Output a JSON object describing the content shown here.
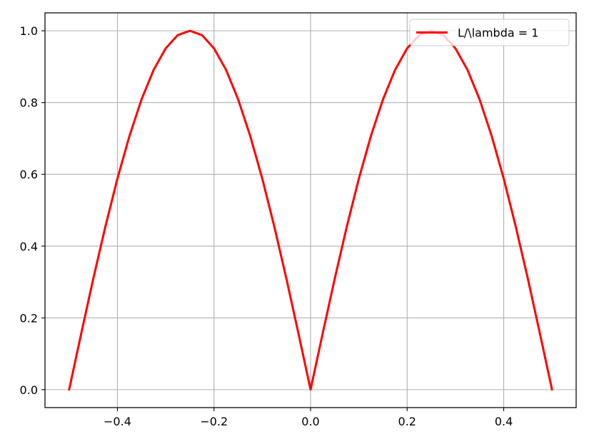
{
  "chart_data": {
    "type": "line",
    "title": "",
    "xlabel": "",
    "ylabel": "",
    "xlim": [
      -0.55,
      0.55
    ],
    "ylim": [
      -0.05,
      1.05
    ],
    "grid": true,
    "legend_position": "top-right",
    "x_ticks": [
      -0.4,
      -0.2,
      0.0,
      0.2,
      0.4
    ],
    "x_tick_labels": [
      "−0.4",
      "−0.2",
      "0.0",
      "0.2",
      "0.4"
    ],
    "y_ticks": [
      0.0,
      0.2,
      0.4,
      0.6,
      0.8,
      1.0
    ],
    "y_tick_labels": [
      "0.0",
      "0.2",
      "0.4",
      "0.6",
      "0.8",
      "1.0"
    ],
    "series": [
      {
        "name": "L/\\lambda = 1",
        "color": "#ff0000",
        "x": [
          -0.5,
          -0.475,
          -0.45,
          -0.425,
          -0.4,
          -0.375,
          -0.35,
          -0.325,
          -0.3,
          -0.275,
          -0.25,
          -0.225,
          -0.2,
          -0.175,
          -0.15,
          -0.125,
          -0.1,
          -0.075,
          -0.05,
          -0.025,
          0.0,
          0.025,
          0.05,
          0.075,
          0.1,
          0.125,
          0.15,
          0.175,
          0.2,
          0.225,
          0.25,
          0.275,
          0.3,
          0.325,
          0.35,
          0.375,
          0.4,
          0.425,
          0.45,
          0.475,
          0.5
        ],
        "y": [
          0.0,
          0.156,
          0.309,
          0.454,
          0.588,
          0.707,
          0.809,
          0.891,
          0.951,
          0.988,
          1.0,
          0.988,
          0.951,
          0.891,
          0.809,
          0.707,
          0.588,
          0.454,
          0.309,
          0.156,
          0.0,
          0.156,
          0.309,
          0.454,
          0.588,
          0.707,
          0.809,
          0.891,
          0.951,
          0.988,
          1.0,
          0.988,
          0.951,
          0.891,
          0.809,
          0.707,
          0.588,
          0.454,
          0.309,
          0.156,
          0.0
        ]
      }
    ]
  }
}
